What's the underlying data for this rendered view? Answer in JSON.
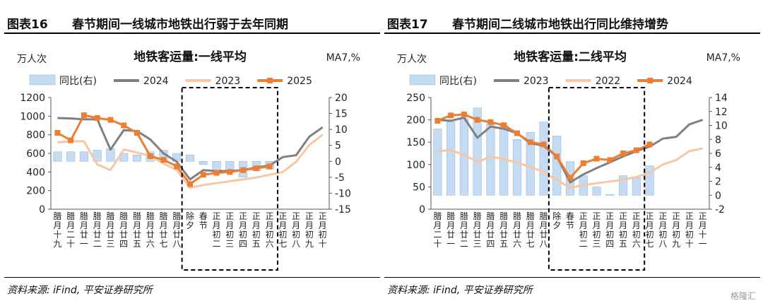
{
  "colors": {
    "bar": "#c5dbf1",
    "bar_border": "#8fb4da",
    "gray": "#808080",
    "peach": "#f9c6a3",
    "orange": "#ed7d31",
    "box": "#000000"
  },
  "panels": [
    {
      "fig_num": "图表16",
      "fig_title": "春节期间一线城市地铁出行弱于去年同期",
      "source": "资料来源: iFind, 平安证券研究所",
      "watermark": "",
      "chart_data": {
        "type": "bar+line",
        "title": "地铁客运量:一线平均",
        "y_left_unit": "万人次",
        "y_right_unit": "MA7,%",
        "y_left": {
          "min": 0,
          "max": 1200,
          "ticks": [
            0,
            200,
            400,
            600,
            800,
            1000,
            1200
          ]
        },
        "y_right": {
          "min": -15,
          "max": 20,
          "ticks": [
            -15,
            -10,
            -5,
            0,
            5,
            10,
            15,
            20
          ]
        },
        "categories": [
          "腊月十九",
          "腊月二十",
          "腊月廿一",
          "腊月廿二",
          "腊月廿三",
          "腊月廿四",
          "腊月廿五",
          "腊月廿六",
          "腊月廿七",
          "腊月廿八",
          "除夕",
          "春节",
          "正月初二",
          "正月初三",
          "正月初四",
          "正月初五",
          "正月初六",
          "正月初七",
          "正月初八",
          "正月初九",
          "正月初十"
        ],
        "highlight": {
          "from": 10,
          "to": 16
        },
        "series": [
          {
            "name": "同比(右)",
            "kind": "bar",
            "axis": "right",
            "values": [
              3,
              3,
              3,
              3.5,
              4,
              2.5,
              2,
              3,
              3.5,
              2.5,
              2,
              -1,
              -3.5,
              -3.5,
              -5,
              -3,
              -2.5,
              null,
              null,
              null,
              null
            ]
          },
          {
            "name": "2024",
            "kind": "line",
            "color_key": "gray",
            "axis": "left",
            "values": [
              980,
              975,
              965,
              965,
              640,
              850,
              840,
              750,
              600,
              510,
              320,
              420,
              410,
              410,
              420,
              450,
              470,
              560,
              580,
              780,
              880
            ]
          },
          {
            "name": "2023",
            "kind": "line",
            "color_key": "peach",
            "axis": "left",
            "values": [
              720,
              730,
              730,
              480,
              420,
              640,
              610,
              570,
              490,
              420,
              230,
              260,
              280,
              300,
              320,
              340,
              370,
              400,
              510,
              690,
              800
            ]
          },
          {
            "name": "2025",
            "kind": "line",
            "color_key": "orange",
            "axis": "left",
            "marker": true,
            "values": [
              820,
              740,
              1010,
              980,
              960,
              900,
              820,
              570,
              530,
              460,
              270,
              370,
              390,
              400,
              420,
              440,
              460,
              null,
              null,
              null,
              null
            ]
          }
        ]
      }
    },
    {
      "fig_num": "图表17",
      "fig_title": "春节期间二线城市地铁出行同比维持增势",
      "source": "资料来源: iFind, 平安证券研究所",
      "watermark": "格隆汇",
      "chart_data": {
        "type": "bar+line",
        "title": "地铁客运量:二线平均",
        "y_left_unit": "万人次",
        "y_right_unit": "MA7,%",
        "y_left": {
          "min": 0,
          "max": 250,
          "ticks": [
            0,
            50,
            100,
            150,
            200,
            250
          ]
        },
        "y_right": {
          "min": -2,
          "max": 14,
          "ticks": [
            -2,
            0,
            2,
            4,
            6,
            8,
            10,
            12,
            14
          ]
        },
        "categories": [
          "腊月二十",
          "腊月廿一",
          "腊月廿二",
          "腊月廿三",
          "腊月廿四",
          "腊月廿五",
          "腊月廿六",
          "腊月廿七",
          "腊月廿八",
          "除夕",
          "春节",
          "正月初二",
          "正月初三",
          "正月初四",
          "正月初五",
          "正月初六",
          "正月初七",
          "正月初八",
          "正月初九",
          "正月初十",
          "正月十一"
        ],
        "highlight": {
          "from": 9,
          "to": 15
        },
        "series": [
          {
            "name": "同比(右)",
            "kind": "bar",
            "axis": "right",
            "values": [
              9.5,
              10.5,
              11,
              12.5,
              10.5,
              10,
              8,
              9,
              10.5,
              8.5,
              4.8,
              2.8,
              1.2,
              0.1,
              2.8,
              2.5,
              4.2,
              null,
              null,
              null,
              null
            ]
          },
          {
            "name": "2023",
            "kind": "line",
            "color_key": "gray",
            "axis": "left",
            "values": [
              200,
              198,
              205,
              160,
              185,
              180,
              170,
              148,
              142,
              118,
              60,
              78,
              92,
              105,
              118,
              130,
              140,
              158,
              162,
              190,
              200
            ]
          },
          {
            "name": "2022",
            "kind": "line",
            "color_key": "peach",
            "axis": "left",
            "values": [
              130,
              132,
              122,
              105,
              118,
              112,
              104,
              95,
              83,
              65,
              48,
              54,
              58,
              62,
              66,
              72,
              82,
              100,
              110,
              130,
              136
            ]
          },
          {
            "name": "2024",
            "kind": "line",
            "color_key": "orange",
            "marker": true,
            "axis": "left",
            "values": [
              198,
              210,
              212,
              200,
              195,
              188,
              170,
              150,
              145,
              118,
              70,
              103,
              113,
              110,
              125,
              132,
              145,
              null,
              null,
              null,
              null
            ]
          }
        ]
      }
    }
  ]
}
